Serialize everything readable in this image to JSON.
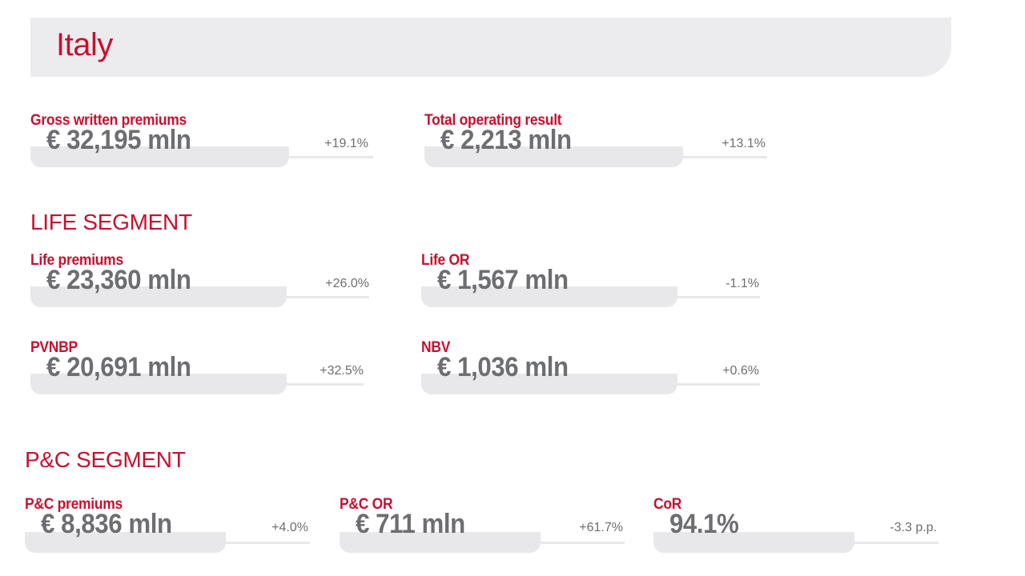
{
  "header": {
    "title": "Italy"
  },
  "group": {
    "gwp": {
      "label": "Gross written premiums",
      "value": "€ 32,195 mln",
      "change": "+19.1%"
    },
    "tor": {
      "label": "Total operating result",
      "value": "€ 2,213 mln",
      "change": "+13.1%"
    }
  },
  "life": {
    "title": "LIFE SEGMENT",
    "premiums": {
      "label": "Life premiums",
      "value": "€ 23,360 mln",
      "change": "+26.0%"
    },
    "or": {
      "label": "Life OR",
      "value": "€ 1,567 mln",
      "change": "-1.1%"
    },
    "pvnbp": {
      "label": "PVNBP",
      "value": "€ 20,691 mln",
      "change": "+32.5%"
    },
    "nbv": {
      "label": "NBV",
      "value": "€ 1,036 mln",
      "change": "+0.6%"
    }
  },
  "pc": {
    "title": "P&C SEGMENT",
    "premiums": {
      "label": "P&C premiums",
      "value": "€ 8,836 mln",
      "change": "+4.0%"
    },
    "or": {
      "label": "P&C OR",
      "value": "€ 711 mln",
      "change": "+61.7%"
    },
    "cor": {
      "label": "CoR",
      "value": "94.1%",
      "change": "-3.3 p.p."
    }
  },
  "colors": {
    "accent": "#c8102e",
    "value_text": "#6d6e71",
    "panel": "#ececee"
  }
}
